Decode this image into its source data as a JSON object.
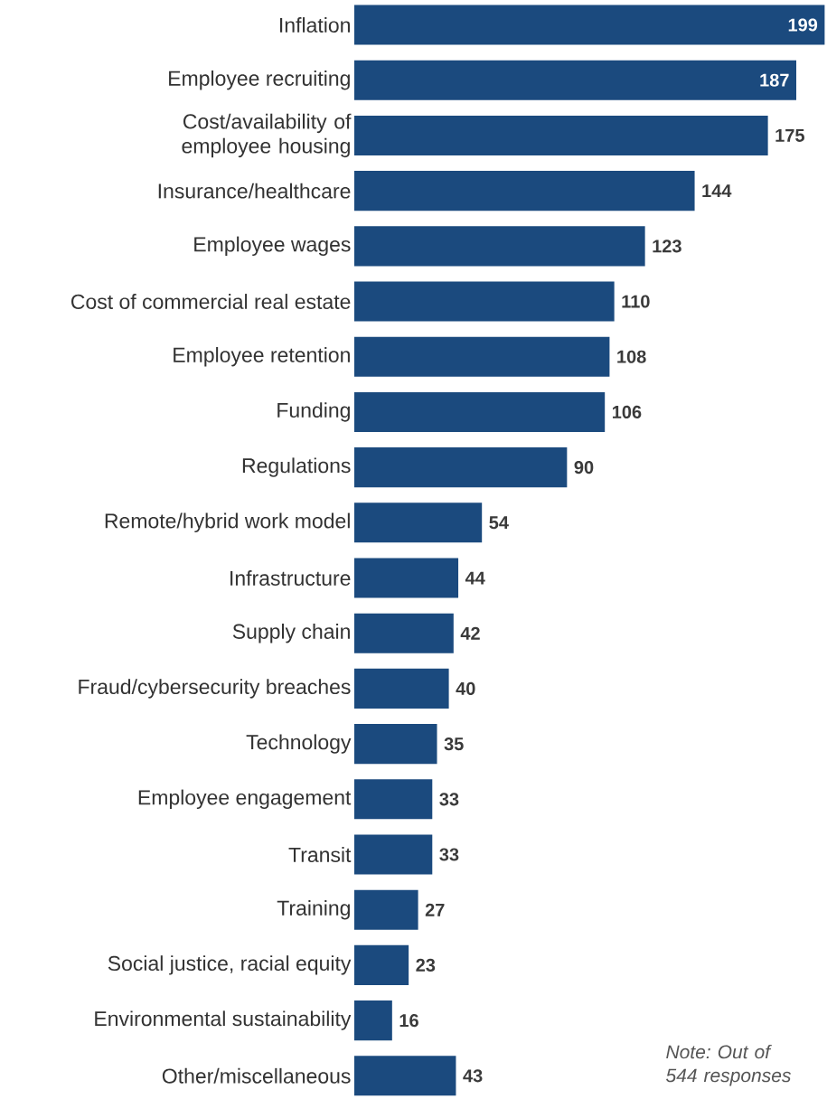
{
  "chart_data": {
    "type": "bar",
    "orientation": "horizontal",
    "categories": [
      "Inflation",
      "Employee recruiting",
      "Cost/availability of employee housing",
      "Insurance/healthcare",
      "Employee wages",
      "Cost of commercial real estate",
      "Employee retention",
      "Funding",
      "Regulations",
      "Remote/hybrid work model",
      "Infrastructure",
      "Supply chain",
      "Fraud/cybersecurity breaches",
      "Technology",
      "Employee engagement",
      "Transit",
      "Training",
      "Social justice, racial equity",
      "Environmental sustainability",
      "Other/miscellaneous"
    ],
    "values": [
      199,
      187,
      175,
      144,
      123,
      110,
      108,
      106,
      90,
      54,
      44,
      42,
      40,
      35,
      33,
      33,
      27,
      23,
      16,
      43
    ],
    "color": "#1b4a7e",
    "data_labels": true,
    "annotations": [
      "Note: Out of 544 responses"
    ]
  }
}
